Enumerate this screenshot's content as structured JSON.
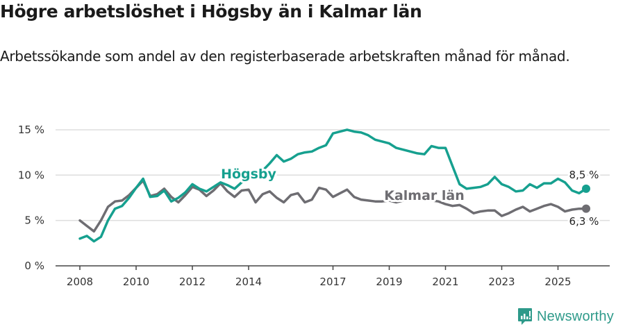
{
  "header": {
    "title": "Högre arbetslöshet i Högsby än i Kalmar län",
    "subtitle": "Arbetssökande som andel av den registerbaserade arbetskraften månad för månad."
  },
  "colors": {
    "hogsby": "#16a08f",
    "kalmar": "#6e6d72",
    "grid": "#dddddd",
    "axis": "#444444"
  },
  "legend": {
    "hogsby_label": "Högsby",
    "kalmar_label": "Kalmar län"
  },
  "end_labels": {
    "hogsby": "8,5 %",
    "kalmar": "6,3 %"
  },
  "brand": {
    "name": "Newsworthy"
  },
  "chart_data": {
    "type": "line",
    "title": "Högre arbetslöshet i Högsby än i Kalmar län",
    "subtitle": "Arbetssökande som andel av den registerbaserade arbetskraften månad för månad.",
    "xlabel": "",
    "ylabel": "",
    "ylim": [
      0,
      15
    ],
    "yticks": [
      "0 %",
      "5 %",
      "10 %",
      "15 %"
    ],
    "xticks": [
      "2008",
      "2010",
      "2012",
      "2014",
      "2017",
      "2019",
      "2021",
      "2023",
      "2025"
    ],
    "grid": true,
    "x": [
      2008.0,
      2008.25,
      2008.5,
      2008.75,
      2009.0,
      2009.25,
      2009.5,
      2009.75,
      2010.0,
      2010.25,
      2010.5,
      2010.75,
      2011.0,
      2011.25,
      2011.5,
      2011.75,
      2012.0,
      2012.25,
      2012.5,
      2012.75,
      2013.0,
      2013.25,
      2013.5,
      2013.75,
      2014.0,
      2014.25,
      2014.5,
      2014.75,
      2015.0,
      2015.25,
      2015.5,
      2015.75,
      2016.0,
      2016.25,
      2016.5,
      2016.75,
      2017.0,
      2017.25,
      2017.5,
      2017.75,
      2018.0,
      2018.25,
      2018.5,
      2018.75,
      2019.0,
      2019.25,
      2019.5,
      2019.75,
      2020.0,
      2020.25,
      2020.5,
      2020.75,
      2021.0,
      2021.25,
      2021.5,
      2021.75,
      2022.0,
      2022.25,
      2022.5,
      2022.75,
      2023.0,
      2023.25,
      2023.5,
      2023.75,
      2024.0,
      2024.25,
      2024.5,
      2024.75,
      2025.0,
      2025.25,
      2025.5,
      2025.75,
      2026.0
    ],
    "series": [
      {
        "name": "Högsby",
        "values": [
          3.0,
          3.3,
          2.7,
          3.2,
          5.0,
          6.3,
          6.6,
          7.5,
          8.6,
          9.6,
          7.6,
          7.7,
          8.3,
          7.1,
          7.5,
          8.1,
          9.0,
          8.5,
          8.2,
          8.7,
          9.2,
          8.9,
          8.5,
          9.2,
          9.6,
          9.9,
          10.5,
          11.3,
          12.2,
          11.5,
          11.8,
          12.3,
          12.5,
          12.6,
          13.0,
          13.3,
          14.6,
          14.8,
          15.0,
          14.8,
          14.7,
          14.4,
          13.9,
          13.7,
          13.5,
          13.0,
          12.8,
          12.6,
          12.4,
          12.3,
          13.2,
          13.0,
          13.0,
          11.0,
          9.0,
          8.5,
          8.6,
          8.7,
          9.0,
          9.8,
          9.0,
          8.7,
          8.2,
          8.3,
          9.0,
          8.6,
          9.1,
          9.1,
          9.6,
          9.2,
          8.3,
          8.0,
          8.5
        ]
      },
      {
        "name": "Kalmar län",
        "values": [
          5.0,
          4.4,
          3.8,
          5.0,
          6.5,
          7.1,
          7.2,
          7.8,
          8.6,
          9.4,
          7.7,
          7.9,
          8.5,
          7.6,
          7.0,
          7.8,
          8.7,
          8.4,
          7.7,
          8.3,
          9.1,
          8.2,
          7.6,
          8.3,
          8.4,
          7.0,
          7.9,
          8.2,
          7.5,
          7.0,
          7.8,
          8.0,
          7.0,
          7.3,
          8.6,
          8.4,
          7.6,
          8.0,
          8.4,
          7.6,
          7.3,
          7.2,
          7.1,
          7.1,
          7.2,
          7.0,
          7.2,
          7.4,
          7.3,
          7.3,
          7.2,
          7.1,
          6.8,
          6.6,
          6.7,
          6.3,
          5.8,
          6.0,
          6.1,
          6.1,
          5.5,
          5.8,
          6.2,
          6.5,
          6.0,
          6.3,
          6.6,
          6.8,
          6.5,
          6.0,
          6.2,
          6.3,
          6.3
        ]
      }
    ],
    "annotations": [
      {
        "text": "Högsby",
        "series": "Högsby",
        "x": 2013.9
      },
      {
        "text": "Kalmar län",
        "series": "Kalmar län",
        "x": 2018.6
      },
      {
        "text": "8,5 %",
        "series": "Högsby",
        "x": 2026.0
      },
      {
        "text": "6,3 %",
        "series": "Kalmar län",
        "x": 2026.0
      }
    ],
    "legend_position": "inline labels"
  }
}
